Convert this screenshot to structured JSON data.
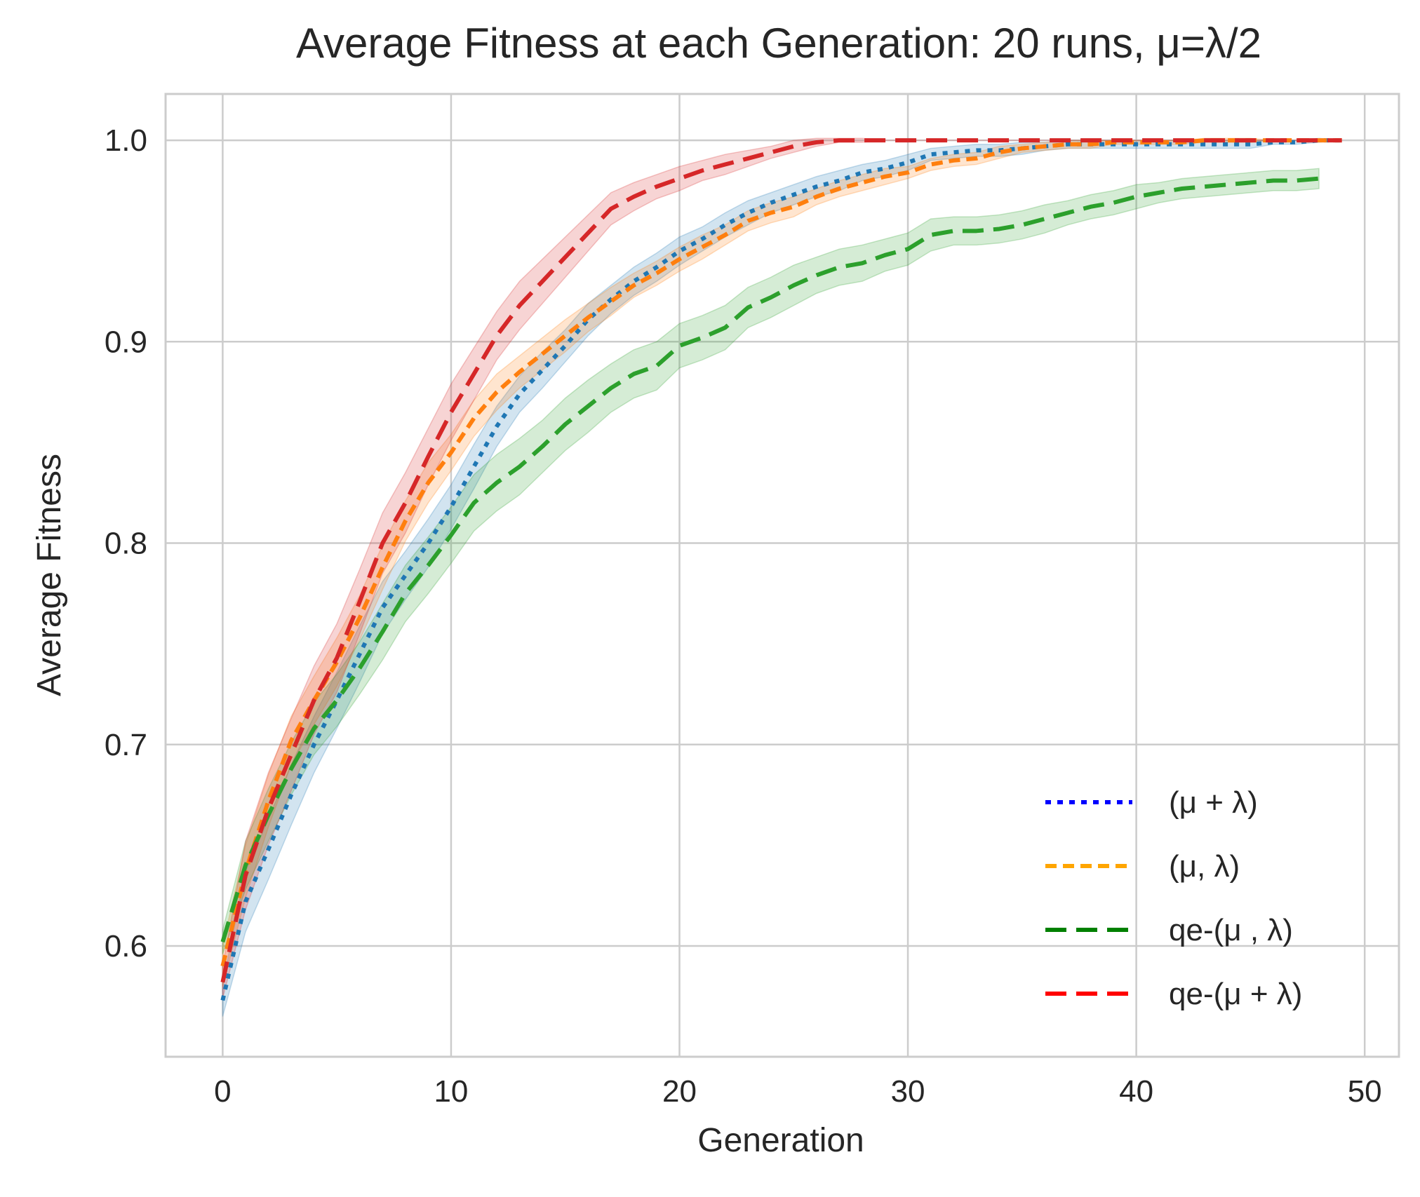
{
  "chart_data": {
    "type": "line",
    "title": "Average Fitness at each Generation: 20 runs, μ=λ/2",
    "xlabel": "Generation",
    "ylabel": "Average Fitness",
    "xlim": [
      -2.5,
      51.5
    ],
    "ylim": [
      0.545,
      1.023
    ],
    "x_ticks": [
      0,
      10,
      20,
      30,
      40,
      50
    ],
    "y_ticks": [
      0.6,
      0.7,
      0.8,
      0.9,
      1.0
    ],
    "x_tick_labels": [
      "0",
      "10",
      "20",
      "30",
      "40",
      "50"
    ],
    "y_tick_labels": [
      "0.6",
      "0.7",
      "0.8",
      "0.9",
      "1.0"
    ],
    "grid": true,
    "legend_position": "lower-right",
    "series": [
      {
        "key": "mu_plus_lambda",
        "line_color": "#1f77b4",
        "legend_color": "#0000ff",
        "dash": "dotted",
        "x": [
          0,
          1,
          2,
          3,
          4,
          5,
          6,
          7,
          8,
          9,
          10,
          11,
          12,
          13,
          14,
          15,
          16,
          17,
          18,
          19,
          20,
          21,
          22,
          23,
          24,
          25,
          26,
          27,
          28,
          29,
          30,
          31,
          32,
          33,
          34,
          35,
          36,
          37,
          38,
          39,
          40,
          41,
          42,
          43,
          44,
          45,
          46,
          47,
          48,
          49
        ],
        "y": [
          0.573,
          0.622,
          0.648,
          0.675,
          0.7,
          0.722,
          0.745,
          0.768,
          0.784,
          0.8,
          0.818,
          0.838,
          0.858,
          0.874,
          0.886,
          0.898,
          0.911,
          0.921,
          0.93,
          0.937,
          0.945,
          0.951,
          0.958,
          0.964,
          0.969,
          0.973,
          0.977,
          0.98,
          0.984,
          0.986,
          0.989,
          0.993,
          0.994,
          0.995,
          0.995,
          0.996,
          0.997,
          0.998,
          0.998,
          0.998,
          0.998,
          0.998,
          0.998,
          0.998,
          0.998,
          0.998,
          0.999,
          0.999,
          1.0,
          1.0
        ],
        "band": [
          0.008,
          0.015,
          0.015,
          0.015,
          0.014,
          0.014,
          0.014,
          0.013,
          0.012,
          0.012,
          0.011,
          0.011,
          0.01,
          0.009,
          0.009,
          0.008,
          0.008,
          0.007,
          0.007,
          0.007,
          0.007,
          0.006,
          0.006,
          0.006,
          0.005,
          0.005,
          0.005,
          0.005,
          0.004,
          0.004,
          0.004,
          0.003,
          0.003,
          0.003,
          0.003,
          0.003,
          0.002,
          0.002,
          0.002,
          0.002,
          0.002,
          0.002,
          0.002,
          0.002,
          0.002,
          0.002,
          0.001,
          0.001,
          0.001,
          0.0
        ]
      },
      {
        "key": "mu_comma_lambda",
        "line_color": "#ff7f0e",
        "legend_color": "#ffa500",
        "dash": "short-dash",
        "x": [
          0,
          1,
          2,
          3,
          4,
          5,
          6,
          7,
          8,
          9,
          10,
          11,
          12,
          13,
          14,
          15,
          16,
          17,
          18,
          19,
          20,
          21,
          22,
          23,
          24,
          25,
          26,
          27,
          28,
          29,
          30,
          31,
          32,
          33,
          34,
          35,
          36,
          37,
          38,
          39,
          40,
          41,
          42,
          43,
          44,
          45,
          46,
          47,
          48,
          49
        ],
        "y": [
          0.59,
          0.637,
          0.672,
          0.702,
          0.722,
          0.741,
          0.763,
          0.788,
          0.811,
          0.83,
          0.845,
          0.862,
          0.875,
          0.885,
          0.894,
          0.903,
          0.912,
          0.92,
          0.928,
          0.934,
          0.941,
          0.947,
          0.953,
          0.96,
          0.964,
          0.967,
          0.972,
          0.976,
          0.979,
          0.982,
          0.984,
          0.988,
          0.99,
          0.991,
          0.994,
          0.996,
          0.997,
          0.998,
          0.998,
          0.999,
          0.999,
          0.999,
          0.999,
          1.0,
          1.0,
          1.0,
          1.0,
          1.0,
          1.0,
          1.0
        ],
        "band": [
          0.01,
          0.013,
          0.013,
          0.012,
          0.012,
          0.012,
          0.011,
          0.011,
          0.01,
          0.01,
          0.009,
          0.009,
          0.009,
          0.008,
          0.008,
          0.008,
          0.007,
          0.007,
          0.006,
          0.006,
          0.006,
          0.006,
          0.005,
          0.005,
          0.005,
          0.005,
          0.004,
          0.004,
          0.004,
          0.004,
          0.003,
          0.003,
          0.003,
          0.003,
          0.003,
          0.002,
          0.002,
          0.002,
          0.002,
          0.001,
          0.001,
          0.001,
          0.001,
          0.001,
          0.001,
          0.001,
          0.0,
          0.0,
          0.0,
          0.0
        ]
      },
      {
        "key": "qe_mu_comma_lambda",
        "line_color": "#2ca02c",
        "legend_color": "#008000",
        "dash": "long-dash",
        "x": [
          0,
          1,
          2,
          3,
          4,
          5,
          6,
          7,
          8,
          9,
          10,
          11,
          12,
          13,
          14,
          15,
          16,
          17,
          18,
          19,
          20,
          21,
          22,
          23,
          24,
          25,
          26,
          27,
          28,
          29,
          30,
          31,
          32,
          33,
          34,
          35,
          36,
          37,
          38,
          39,
          40,
          41,
          42,
          43,
          44,
          45,
          46,
          47,
          48
        ],
        "y": [
          0.602,
          0.64,
          0.665,
          0.688,
          0.708,
          0.722,
          0.738,
          0.756,
          0.775,
          0.789,
          0.804,
          0.82,
          0.83,
          0.838,
          0.848,
          0.859,
          0.868,
          0.877,
          0.884,
          0.888,
          0.898,
          0.902,
          0.907,
          0.917,
          0.922,
          0.928,
          0.933,
          0.937,
          0.939,
          0.943,
          0.946,
          0.953,
          0.955,
          0.955,
          0.956,
          0.958,
          0.961,
          0.964,
          0.967,
          0.969,
          0.972,
          0.974,
          0.976,
          0.977,
          0.978,
          0.979,
          0.98,
          0.98,
          0.981
        ],
        "band": [
          0.006,
          0.012,
          0.013,
          0.013,
          0.013,
          0.013,
          0.013,
          0.014,
          0.014,
          0.014,
          0.014,
          0.014,
          0.014,
          0.014,
          0.013,
          0.013,
          0.013,
          0.012,
          0.012,
          0.012,
          0.011,
          0.011,
          0.011,
          0.01,
          0.01,
          0.01,
          0.009,
          0.009,
          0.009,
          0.008,
          0.008,
          0.008,
          0.007,
          0.007,
          0.007,
          0.007,
          0.007,
          0.006,
          0.006,
          0.006,
          0.006,
          0.005,
          0.005,
          0.005,
          0.005,
          0.005,
          0.005,
          0.005,
          0.005
        ]
      },
      {
        "key": "qe_mu_plus_lambda",
        "line_color": "#d62728",
        "legend_color": "#ff0000",
        "dash": "long-dash",
        "x": [
          0,
          1,
          2,
          3,
          4,
          5,
          6,
          7,
          8,
          9,
          10,
          11,
          12,
          13,
          14,
          15,
          16,
          17,
          18,
          19,
          20,
          21,
          22,
          23,
          24,
          25,
          26,
          27,
          28,
          29,
          30,
          31,
          32,
          33,
          34,
          35,
          36,
          37,
          38,
          39,
          40,
          41,
          42,
          43,
          44,
          45,
          46,
          47,
          48,
          49
        ],
        "y": [
          0.582,
          0.635,
          0.668,
          0.695,
          0.722,
          0.743,
          0.771,
          0.8,
          0.82,
          0.843,
          0.865,
          0.884,
          0.903,
          0.918,
          0.93,
          0.942,
          0.954,
          0.966,
          0.972,
          0.977,
          0.981,
          0.985,
          0.988,
          0.991,
          0.994,
          0.997,
          0.999,
          1.0,
          1.0,
          1.0,
          1.0,
          1.0,
          1.0,
          1.0,
          1.0,
          1.0,
          1.0,
          1.0,
          1.0,
          1.0,
          1.0,
          1.0,
          1.0,
          1.0,
          1.0,
          1.0,
          1.0,
          1.0,
          1.0,
          1.0
        ],
        "band": [
          0.008,
          0.017,
          0.018,
          0.018,
          0.017,
          0.017,
          0.016,
          0.015,
          0.015,
          0.014,
          0.014,
          0.013,
          0.012,
          0.012,
          0.011,
          0.01,
          0.009,
          0.008,
          0.007,
          0.006,
          0.006,
          0.005,
          0.005,
          0.004,
          0.003,
          0.003,
          0.002,
          0.001,
          0.001,
          0.0,
          0.0,
          0.0,
          0.0,
          0.0,
          0.0,
          0.0,
          0.0,
          0.0,
          0.0,
          0.0,
          0.0,
          0.0,
          0.0,
          0.0,
          0.0,
          0.0,
          0.0,
          0.0,
          0.0,
          0.0
        ]
      }
    ],
    "legend": [
      {
        "label": "(μ + λ)",
        "color": "#0000ff",
        "dash": "dotted"
      },
      {
        "label": "(μ, λ)",
        "color": "#ffa500",
        "dash": "short-dash"
      },
      {
        "label": "qe-(μ , λ)",
        "color": "#008000",
        "dash": "long-dash"
      },
      {
        "label": "qe-(μ + λ)",
        "color": "#ff0000",
        "dash": "long-dash"
      }
    ]
  }
}
